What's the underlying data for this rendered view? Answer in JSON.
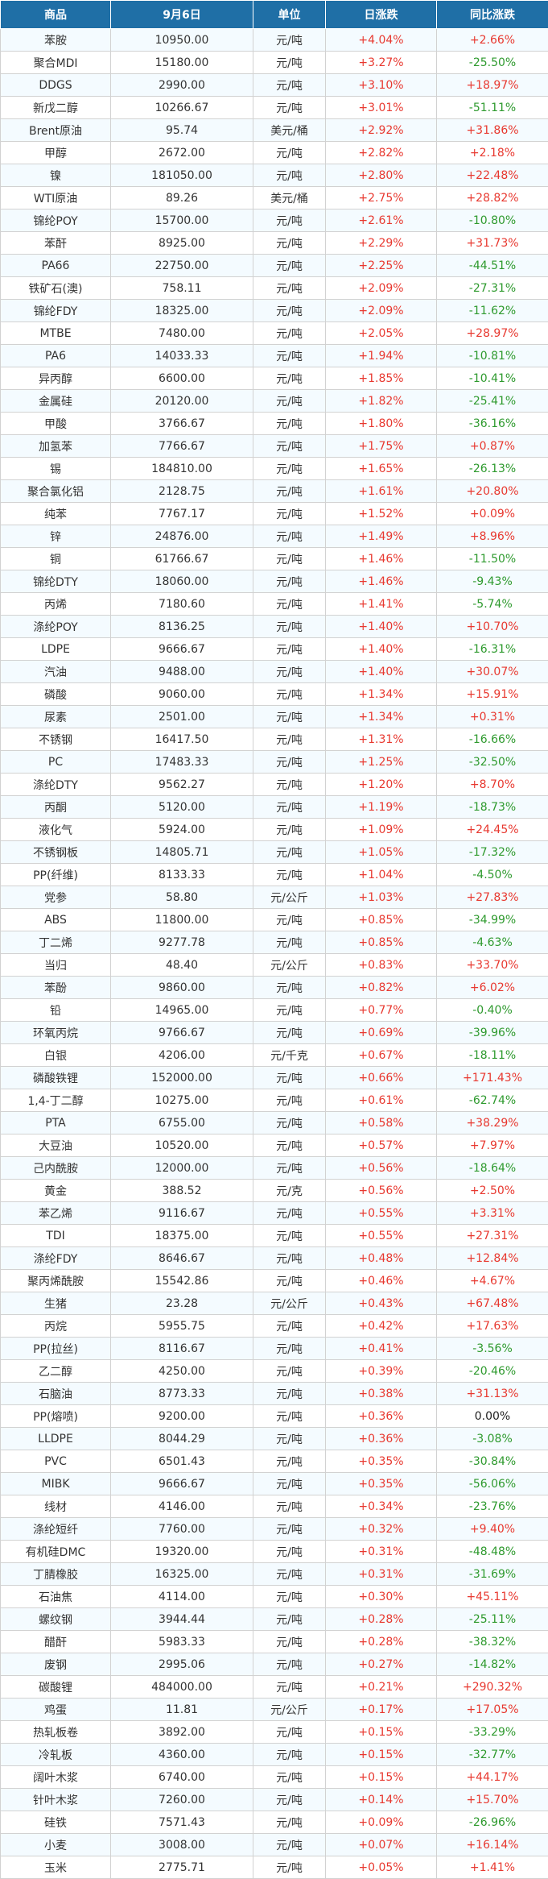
{
  "header": [
    "商品",
    "9月6日",
    "单位",
    "日涨跌",
    "同比涨跌"
  ],
  "colors": {
    "header_bg": "#1f6fa6",
    "up": "#e8382f",
    "down": "#2e9a2e",
    "flat": "#222222",
    "stripe": "#f4fbff"
  },
  "rows": [
    {
      "name": "苯胺",
      "price": "10950.00",
      "unit": "元/吨",
      "day": "+4.04%",
      "yoy": "+2.66%"
    },
    {
      "name": "聚合MDI",
      "price": "15180.00",
      "unit": "元/吨",
      "day": "+3.27%",
      "yoy": "-25.50%"
    },
    {
      "name": "DDGS",
      "price": "2990.00",
      "unit": "元/吨",
      "day": "+3.10%",
      "yoy": "+18.97%"
    },
    {
      "name": "新戊二醇",
      "price": "10266.67",
      "unit": "元/吨",
      "day": "+3.01%",
      "yoy": "-51.11%"
    },
    {
      "name": "Brent原油",
      "price": "95.74",
      "unit": "美元/桶",
      "day": "+2.92%",
      "yoy": "+31.86%"
    },
    {
      "name": "甲醇",
      "price": "2672.00",
      "unit": "元/吨",
      "day": "+2.82%",
      "yoy": "+2.18%"
    },
    {
      "name": "镍",
      "price": "181050.00",
      "unit": "元/吨",
      "day": "+2.80%",
      "yoy": "+22.48%"
    },
    {
      "name": "WTI原油",
      "price": "89.26",
      "unit": "美元/桶",
      "day": "+2.75%",
      "yoy": "+28.82%"
    },
    {
      "name": "锦纶POY",
      "price": "15700.00",
      "unit": "元/吨",
      "day": "+2.61%",
      "yoy": "-10.80%"
    },
    {
      "name": "苯酐",
      "price": "8925.00",
      "unit": "元/吨",
      "day": "+2.29%",
      "yoy": "+31.73%"
    },
    {
      "name": "PA66",
      "price": "22750.00",
      "unit": "元/吨",
      "day": "+2.25%",
      "yoy": "-44.51%"
    },
    {
      "name": "铁矿石(澳)",
      "price": "758.11",
      "unit": "元/吨",
      "day": "+2.09%",
      "yoy": "-27.31%"
    },
    {
      "name": "锦纶FDY",
      "price": "18325.00",
      "unit": "元/吨",
      "day": "+2.09%",
      "yoy": "-11.62%"
    },
    {
      "name": "MTBE",
      "price": "7480.00",
      "unit": "元/吨",
      "day": "+2.05%",
      "yoy": "+28.97%"
    },
    {
      "name": "PA6",
      "price": "14033.33",
      "unit": "元/吨",
      "day": "+1.94%",
      "yoy": "-10.81%"
    },
    {
      "name": "异丙醇",
      "price": "6600.00",
      "unit": "元/吨",
      "day": "+1.85%",
      "yoy": "-10.41%"
    },
    {
      "name": "金属硅",
      "price": "20120.00",
      "unit": "元/吨",
      "day": "+1.82%",
      "yoy": "-25.41%"
    },
    {
      "name": "甲酸",
      "price": "3766.67",
      "unit": "元/吨",
      "day": "+1.80%",
      "yoy": "-36.16%"
    },
    {
      "name": "加氢苯",
      "price": "7766.67",
      "unit": "元/吨",
      "day": "+1.75%",
      "yoy": "+0.87%"
    },
    {
      "name": "锡",
      "price": "184810.00",
      "unit": "元/吨",
      "day": "+1.65%",
      "yoy": "-26.13%"
    },
    {
      "name": "聚合氯化铝",
      "price": "2128.75",
      "unit": "元/吨",
      "day": "+1.61%",
      "yoy": "+20.80%"
    },
    {
      "name": "纯苯",
      "price": "7767.17",
      "unit": "元/吨",
      "day": "+1.52%",
      "yoy": "+0.09%"
    },
    {
      "name": "锌",
      "price": "24876.00",
      "unit": "元/吨",
      "day": "+1.49%",
      "yoy": "+8.96%"
    },
    {
      "name": "铜",
      "price": "61766.67",
      "unit": "元/吨",
      "day": "+1.46%",
      "yoy": "-11.50%"
    },
    {
      "name": "锦纶DTY",
      "price": "18060.00",
      "unit": "元/吨",
      "day": "+1.46%",
      "yoy": "-9.43%"
    },
    {
      "name": "丙烯",
      "price": "7180.60",
      "unit": "元/吨",
      "day": "+1.41%",
      "yoy": "-5.74%"
    },
    {
      "name": "涤纶POY",
      "price": "8136.25",
      "unit": "元/吨",
      "day": "+1.40%",
      "yoy": "+10.70%"
    },
    {
      "name": "LDPE",
      "price": "9666.67",
      "unit": "元/吨",
      "day": "+1.40%",
      "yoy": "-16.31%"
    },
    {
      "name": "汽油",
      "price": "9488.00",
      "unit": "元/吨",
      "day": "+1.40%",
      "yoy": "+30.07%"
    },
    {
      "name": "磷酸",
      "price": "9060.00",
      "unit": "元/吨",
      "day": "+1.34%",
      "yoy": "+15.91%"
    },
    {
      "name": "尿素",
      "price": "2501.00",
      "unit": "元/吨",
      "day": "+1.34%",
      "yoy": "+0.31%"
    },
    {
      "name": "不锈钢",
      "price": "16417.50",
      "unit": "元/吨",
      "day": "+1.31%",
      "yoy": "-16.66%"
    },
    {
      "name": "PC",
      "price": "17483.33",
      "unit": "元/吨",
      "day": "+1.25%",
      "yoy": "-32.50%"
    },
    {
      "name": "涤纶DTY",
      "price": "9562.27",
      "unit": "元/吨",
      "day": "+1.20%",
      "yoy": "+8.70%"
    },
    {
      "name": "丙酮",
      "price": "5120.00",
      "unit": "元/吨",
      "day": "+1.19%",
      "yoy": "-18.73%"
    },
    {
      "name": "液化气",
      "price": "5924.00",
      "unit": "元/吨",
      "day": "+1.09%",
      "yoy": "+24.45%"
    },
    {
      "name": "不锈钢板",
      "price": "14805.71",
      "unit": "元/吨",
      "day": "+1.05%",
      "yoy": "-17.32%"
    },
    {
      "name": "PP(纤维)",
      "price": "8133.33",
      "unit": "元/吨",
      "day": "+1.04%",
      "yoy": "-4.50%"
    },
    {
      "name": "党参",
      "price": "58.80",
      "unit": "元/公斤",
      "day": "+1.03%",
      "yoy": "+27.83%"
    },
    {
      "name": "ABS",
      "price": "11800.00",
      "unit": "元/吨",
      "day": "+0.85%",
      "yoy": "-34.99%"
    },
    {
      "name": "丁二烯",
      "price": "9277.78",
      "unit": "元/吨",
      "day": "+0.85%",
      "yoy": "-4.63%"
    },
    {
      "name": "当归",
      "price": "48.40",
      "unit": "元/公斤",
      "day": "+0.83%",
      "yoy": "+33.70%"
    },
    {
      "name": "苯酚",
      "price": "9860.00",
      "unit": "元/吨",
      "day": "+0.82%",
      "yoy": "+6.02%"
    },
    {
      "name": "铅",
      "price": "14965.00",
      "unit": "元/吨",
      "day": "+0.77%",
      "yoy": "-0.40%"
    },
    {
      "name": "环氧丙烷",
      "price": "9766.67",
      "unit": "元/吨",
      "day": "+0.69%",
      "yoy": "-39.96%"
    },
    {
      "name": "白银",
      "price": "4206.00",
      "unit": "元/千克",
      "day": "+0.67%",
      "yoy": "-18.11%"
    },
    {
      "name": "磷酸铁锂",
      "price": "152000.00",
      "unit": "元/吨",
      "day": "+0.66%",
      "yoy": "+171.43%"
    },
    {
      "name": "1,4-丁二醇",
      "price": "10275.00",
      "unit": "元/吨",
      "day": "+0.61%",
      "yoy": "-62.74%"
    },
    {
      "name": "PTA",
      "price": "6755.00",
      "unit": "元/吨",
      "day": "+0.58%",
      "yoy": "+38.29%"
    },
    {
      "name": "大豆油",
      "price": "10520.00",
      "unit": "元/吨",
      "day": "+0.57%",
      "yoy": "+7.97%"
    },
    {
      "name": "己内酰胺",
      "price": "12000.00",
      "unit": "元/吨",
      "day": "+0.56%",
      "yoy": "-18.64%"
    },
    {
      "name": "黄金",
      "price": "388.52",
      "unit": "元/克",
      "day": "+0.56%",
      "yoy": "+2.50%"
    },
    {
      "name": "苯乙烯",
      "price": "9116.67",
      "unit": "元/吨",
      "day": "+0.55%",
      "yoy": "+3.31%"
    },
    {
      "name": "TDI",
      "price": "18375.00",
      "unit": "元/吨",
      "day": "+0.55%",
      "yoy": "+27.31%"
    },
    {
      "name": "涤纶FDY",
      "price": "8646.67",
      "unit": "元/吨",
      "day": "+0.48%",
      "yoy": "+12.84%"
    },
    {
      "name": "聚丙烯酰胺",
      "price": "15542.86",
      "unit": "元/吨",
      "day": "+0.46%",
      "yoy": "+4.67%"
    },
    {
      "name": "生猪",
      "price": "23.28",
      "unit": "元/公斤",
      "day": "+0.43%",
      "yoy": "+67.48%"
    },
    {
      "name": "丙烷",
      "price": "5955.75",
      "unit": "元/吨",
      "day": "+0.42%",
      "yoy": "+17.63%"
    },
    {
      "name": "PP(拉丝)",
      "price": "8116.67",
      "unit": "元/吨",
      "day": "+0.41%",
      "yoy": "-3.56%"
    },
    {
      "name": "乙二醇",
      "price": "4250.00",
      "unit": "元/吨",
      "day": "+0.39%",
      "yoy": "-20.46%"
    },
    {
      "name": "石脑油",
      "price": "8773.33",
      "unit": "元/吨",
      "day": "+0.38%",
      "yoy": "+31.13%"
    },
    {
      "name": "PP(熔喷)",
      "price": "9200.00",
      "unit": "元/吨",
      "day": "+0.36%",
      "yoy": "0.00%"
    },
    {
      "name": "LLDPE",
      "price": "8044.29",
      "unit": "元/吨",
      "day": "+0.36%",
      "yoy": "-3.08%"
    },
    {
      "name": "PVC",
      "price": "6501.43",
      "unit": "元/吨",
      "day": "+0.35%",
      "yoy": "-30.84%"
    },
    {
      "name": "MIBK",
      "price": "9666.67",
      "unit": "元/吨",
      "day": "+0.35%",
      "yoy": "-56.06%"
    },
    {
      "name": "线材",
      "price": "4146.00",
      "unit": "元/吨",
      "day": "+0.34%",
      "yoy": "-23.76%"
    },
    {
      "name": "涤纶短纤",
      "price": "7760.00",
      "unit": "元/吨",
      "day": "+0.32%",
      "yoy": "+9.40%"
    },
    {
      "name": "有机硅DMC",
      "price": "19320.00",
      "unit": "元/吨",
      "day": "+0.31%",
      "yoy": "-48.48%"
    },
    {
      "name": "丁腈橡胶",
      "price": "16325.00",
      "unit": "元/吨",
      "day": "+0.31%",
      "yoy": "-31.69%"
    },
    {
      "name": "石油焦",
      "price": "4114.00",
      "unit": "元/吨",
      "day": "+0.30%",
      "yoy": "+45.11%"
    },
    {
      "name": "螺纹钢",
      "price": "3944.44",
      "unit": "元/吨",
      "day": "+0.28%",
      "yoy": "-25.11%"
    },
    {
      "name": "醋酐",
      "price": "5983.33",
      "unit": "元/吨",
      "day": "+0.28%",
      "yoy": "-38.32%"
    },
    {
      "name": "废钢",
      "price": "2995.06",
      "unit": "元/吨",
      "day": "+0.27%",
      "yoy": "-14.82%"
    },
    {
      "name": "碳酸锂",
      "price": "484000.00",
      "unit": "元/吨",
      "day": "+0.21%",
      "yoy": "+290.32%"
    },
    {
      "name": "鸡蛋",
      "price": "11.81",
      "unit": "元/公斤",
      "day": "+0.17%",
      "yoy": "+17.05%"
    },
    {
      "name": "热轧板卷",
      "price": "3892.00",
      "unit": "元/吨",
      "day": "+0.15%",
      "yoy": "-33.29%"
    },
    {
      "name": "冷轧板",
      "price": "4360.00",
      "unit": "元/吨",
      "day": "+0.15%",
      "yoy": "-32.77%"
    },
    {
      "name": "阔叶木浆",
      "price": "6740.00",
      "unit": "元/吨",
      "day": "+0.15%",
      "yoy": "+44.17%"
    },
    {
      "name": "针叶木浆",
      "price": "7260.00",
      "unit": "元/吨",
      "day": "+0.14%",
      "yoy": "+15.70%"
    },
    {
      "name": "硅铁",
      "price": "7571.43",
      "unit": "元/吨",
      "day": "+0.09%",
      "yoy": "-26.96%"
    },
    {
      "name": "小麦",
      "price": "3008.00",
      "unit": "元/吨",
      "day": "+0.07%",
      "yoy": "+16.14%"
    },
    {
      "name": "玉米",
      "price": "2775.71",
      "unit": "元/吨",
      "day": "+0.05%",
      "yoy": "+1.41%"
    }
  ]
}
